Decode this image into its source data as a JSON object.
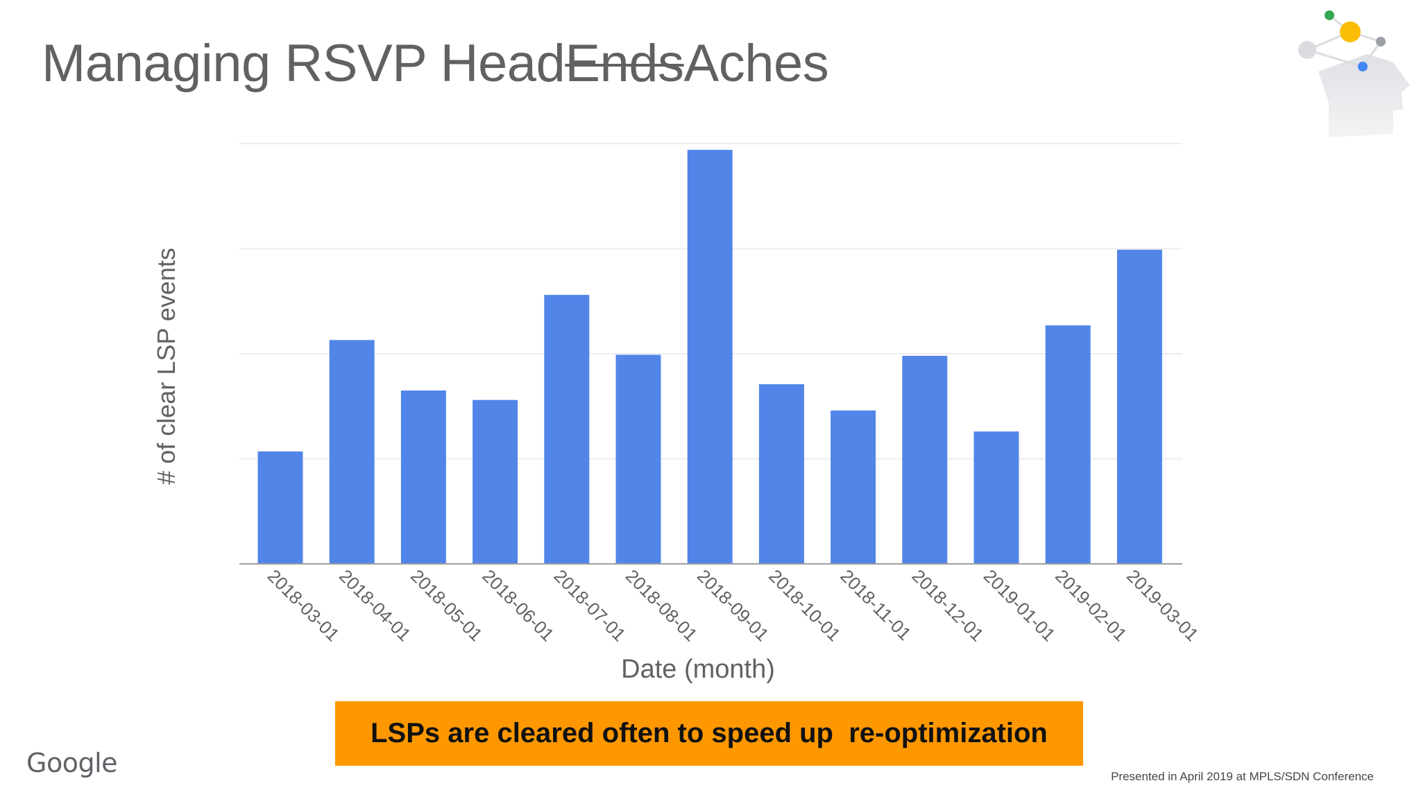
{
  "slide": {
    "title_before": "Managing RSVP Head",
    "title_struck": "Ends",
    "title_after": "Aches",
    "callout": "LSPs are cleared often to speed up  re-optimization",
    "logo_text": "Google",
    "footer": "Presented in April 2019 at MPLS/SDN Conference"
  },
  "icons": {
    "brand": "head-network-icon"
  },
  "colors": {
    "bar": "#5185e8",
    "callout_bg": "#ff9800",
    "title": "#616161",
    "network_green": "#34a853",
    "network_yellow": "#fbbc04",
    "network_blue": "#4285f4",
    "network_gray": "#9aa0a6"
  },
  "chart_data": {
    "type": "bar",
    "title": "",
    "xlabel": "Date (month)",
    "ylabel": "# of clear LSP events",
    "categories": [
      "2018-03-01",
      "2018-04-01",
      "2018-05-01",
      "2018-06-01",
      "2018-07-01",
      "2018-08-01",
      "2018-09-01",
      "2018-10-01",
      "2018-11-01",
      "2018-12-01",
      "2019-01-01",
      "2019-02-01",
      "2019-03-01"
    ],
    "values": [
      1.07,
      2.13,
      1.65,
      1.56,
      2.56,
      1.99,
      3.94,
      1.71,
      1.46,
      1.98,
      1.26,
      2.27,
      2.99
    ],
    "ylim": [
      0,
      4
    ],
    "yticks_labeled": false,
    "grid": true,
    "legend": "none"
  }
}
